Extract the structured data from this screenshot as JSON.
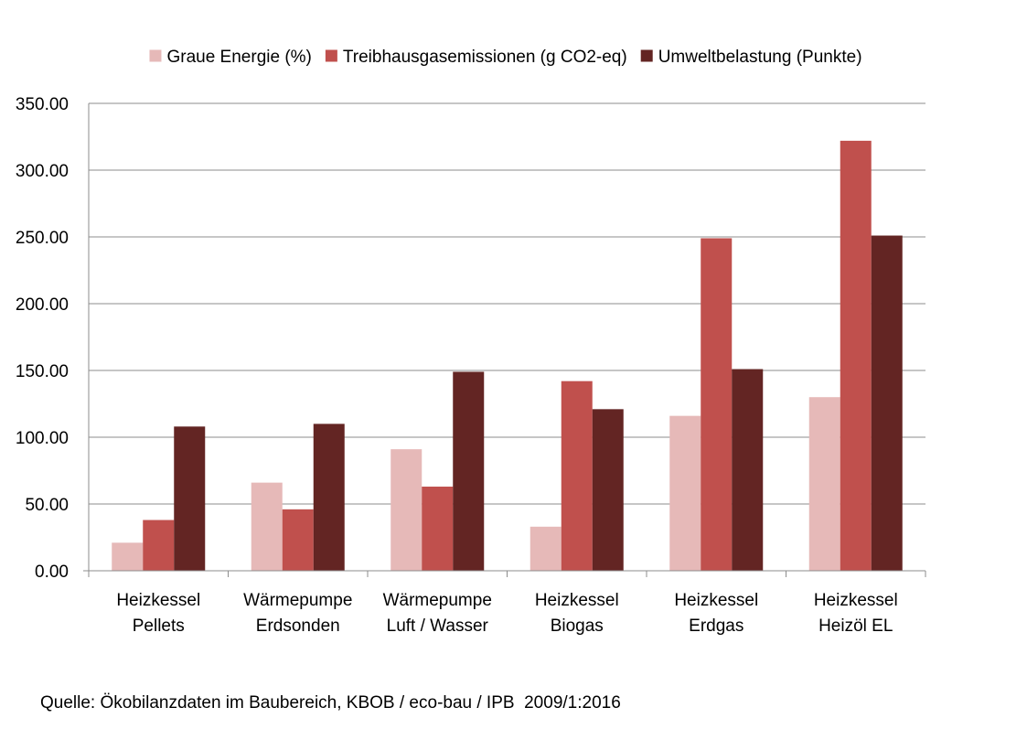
{
  "chart_data": {
    "type": "bar",
    "categories": [
      [
        "Heizkessel",
        "Pellets"
      ],
      [
        "Wärmepumpe",
        "Erdsonden"
      ],
      [
        "Wärmepumpe",
        "Luft / Wasser"
      ],
      [
        "Heizkessel",
        "Biogas"
      ],
      [
        "Heizkessel",
        "Erdgas"
      ],
      [
        "Heizkessel",
        "Heizöl EL"
      ]
    ],
    "series": [
      {
        "name": "Graue Energie (%)",
        "color": "#e6b9b8",
        "values": [
          21,
          66,
          91,
          33,
          116,
          130
        ]
      },
      {
        "name": "Treibhausgasemissionen (g CO2-eq)",
        "color": "#c0504d",
        "values": [
          38,
          46,
          63,
          142,
          249,
          322
        ]
      },
      {
        "name": "Umweltbelastung (Punkte)",
        "color": "#632523",
        "values": [
          108,
          110,
          149,
          121,
          151,
          251
        ]
      }
    ],
    "yticks": [
      "0.00",
      "50.00",
      "100.00",
      "150.00",
      "200.00",
      "250.00",
      "300.00",
      "350.00"
    ],
    "ylim": [
      0,
      350
    ],
    "grid": true,
    "legend_position": "top"
  },
  "source_note": "Quelle: Ökobilanzdaten im Baubereich, KBOB / eco-bau / IPB  2009/1:2016"
}
